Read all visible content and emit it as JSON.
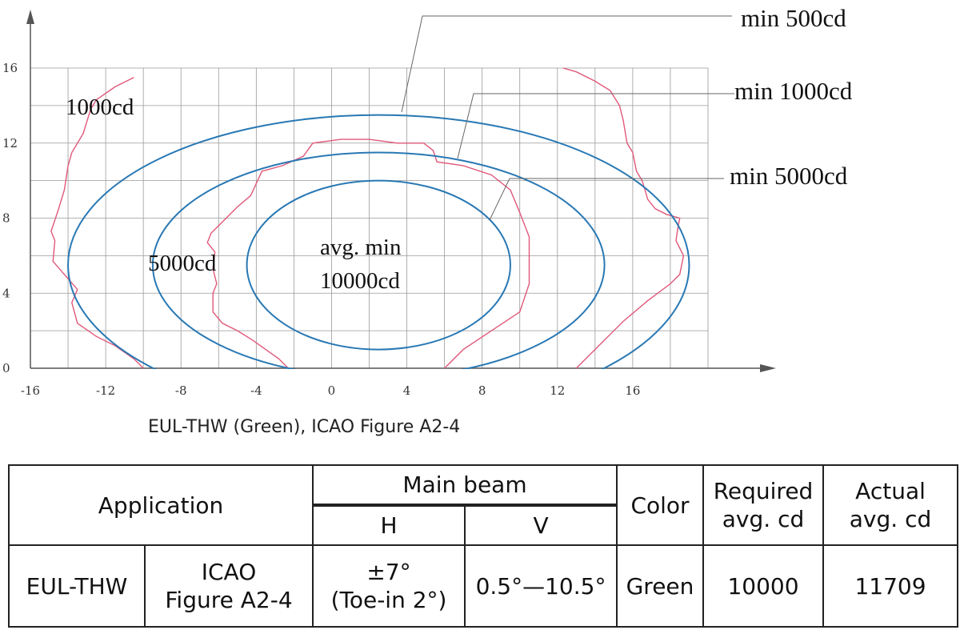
{
  "chart_data": {
    "type": "line",
    "title": "",
    "xlabel": "",
    "ylabel": "",
    "xlim": [
      -16,
      20
    ],
    "ylim": [
      0,
      16
    ],
    "x_ticks": [
      "-16",
      "-12",
      "-8",
      "-4",
      "0",
      "4",
      "8",
      "12",
      "16"
    ],
    "y_ticks": [
      "0",
      "4",
      "8",
      "12",
      "16"
    ],
    "grid": true,
    "colors": {
      "ellipse": "#2878b4",
      "measured": "#e0587a",
      "grid": "#9a9a9a"
    },
    "ellipses": [
      {
        "center": [
          2.5,
          5.5
        ],
        "rx": 16.5,
        "ry": 8,
        "label": "min 500cd"
      },
      {
        "center": [
          2.5,
          5.5
        ],
        "rx": 12,
        "ry": 6,
        "label": "min 1000cd"
      },
      {
        "center": [
          2.5,
          5.5
        ],
        "rx": 7,
        "ry": 4.5,
        "label": "min 5000cd"
      }
    ],
    "measured_contours": [
      {
        "label": "1000cd",
        "points": [
          [
            -10.5,
            15.5
          ],
          [
            -11.5,
            15
          ],
          [
            -12.5,
            14.3
          ],
          [
            -12.8,
            13.8
          ],
          [
            -13.2,
            12.5
          ],
          [
            -13.8,
            11.5
          ],
          [
            -14.0,
            10.8
          ],
          [
            -14.2,
            9.5
          ],
          [
            -14.5,
            8.5
          ],
          [
            -14.9,
            7.3
          ],
          [
            -14.7,
            6.8
          ],
          [
            -14.8,
            5.7
          ],
          [
            -14.2,
            5.0
          ],
          [
            -13.5,
            4.2
          ],
          [
            -13.8,
            3.5
          ],
          [
            -13.5,
            2.4
          ],
          [
            -12.5,
            1.7
          ],
          [
            -11.5,
            1.2
          ],
          [
            -10.5,
            0.5
          ],
          [
            -10.0,
            0.0
          ]
        ]
      },
      {
        "label": "1000cd",
        "points": [
          [
            12.3,
            16
          ],
          [
            13.0,
            15.8
          ],
          [
            14.0,
            15.3
          ],
          [
            14.8,
            14.8
          ],
          [
            15.3,
            14.0
          ],
          [
            15.5,
            13.2
          ],
          [
            15.7,
            12.0
          ],
          [
            16.0,
            11.5
          ],
          [
            16.2,
            10.5
          ],
          [
            16.5,
            10.0
          ],
          [
            16.8,
            9.0
          ],
          [
            17.2,
            8.5
          ],
          [
            17.8,
            8.2
          ],
          [
            18.5,
            8.0
          ],
          [
            18.4,
            7.5
          ],
          [
            18.3,
            6.8
          ],
          [
            18.7,
            6.0
          ],
          [
            18.5,
            5.0
          ],
          [
            18.0,
            4.5
          ],
          [
            16.8,
            3.6
          ],
          [
            15.5,
            2.5
          ],
          [
            14.5,
            1.5
          ],
          [
            13.8,
            0.8
          ],
          [
            13.0,
            0.0
          ]
        ]
      },
      {
        "label": "5000cd",
        "points": [
          [
            -2.3,
            0
          ],
          [
            -2.8,
            0.5
          ],
          [
            -3.5,
            1.0
          ],
          [
            -4.2,
            1.5
          ],
          [
            -5.0,
            2.0
          ],
          [
            -5.8,
            2.4
          ],
          [
            -6.3,
            3.0
          ],
          [
            -6.3,
            3.5
          ],
          [
            -6.3,
            4.0
          ],
          [
            -6.1,
            4.5
          ],
          [
            -6.3,
            5.3
          ],
          [
            -6.2,
            6.2
          ],
          [
            -6.6,
            6.7
          ],
          [
            -6.4,
            7.2
          ],
          [
            -5.8,
            7.8
          ],
          [
            -5.0,
            8.6
          ],
          [
            -4.3,
            9.2
          ],
          [
            -3.7,
            10.5
          ],
          [
            -2.6,
            10.8
          ],
          [
            -1.5,
            11.3
          ],
          [
            -1.0,
            12.0
          ],
          [
            0.5,
            12.2
          ],
          [
            2.0,
            12.2
          ],
          [
            3.5,
            12.0
          ],
          [
            4.9,
            12.0
          ],
          [
            5.4,
            11.6
          ],
          [
            5.6,
            11.0
          ],
          [
            7.0,
            10.8
          ],
          [
            8.5,
            10.3
          ],
          [
            9.5,
            9.5
          ],
          [
            10.0,
            8.3
          ],
          [
            10.5,
            7.0
          ],
          [
            10.5,
            5.5
          ],
          [
            10.5,
            4.5
          ],
          [
            10.0,
            3.0
          ],
          [
            8.5,
            2.0
          ],
          [
            7.0,
            1.0
          ],
          [
            6.0,
            0.0
          ]
        ]
      }
    ],
    "region_labels": [
      "1000cd",
      "5000cd",
      "avg. min",
      "10000cd"
    ],
    "callouts": [
      "min 500cd",
      "min 1000cd",
      "min 5000cd"
    ]
  },
  "caption": "EUL-THW (Green), ICAO Figure A2-4",
  "table": {
    "headers": {
      "application": "Application",
      "main_beam": "Main beam",
      "h": "H",
      "v": "V",
      "color": "Color",
      "required_l1": "Required",
      "required_l2": "avg. cd",
      "actual_l1": "Actual",
      "actual_l2": "avg. cd"
    },
    "row": {
      "product": "EUL-THW",
      "standard_l1": "ICAO",
      "standard_l2": "Figure A2-4",
      "h_l1": "±7°",
      "h_l2": "(Toe-in 2°)",
      "v": "0.5°—10.5°",
      "color": "Green",
      "required": "10000",
      "actual": "11709"
    }
  }
}
